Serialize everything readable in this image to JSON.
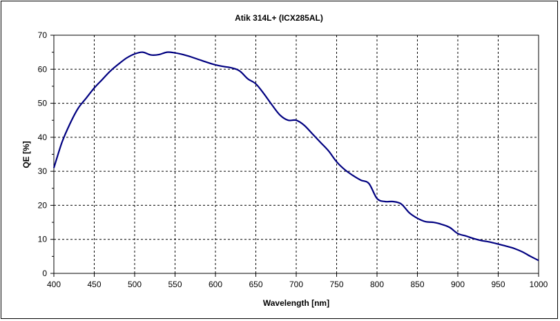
{
  "chart_data": {
    "type": "line",
    "title": "Atik 314L+ (ICX285AL)",
    "xlabel": "Wavelength [nm]",
    "ylabel": "QE [%]",
    "xlim": [
      400,
      1000
    ],
    "ylim": [
      0,
      70
    ],
    "xticks": [
      400,
      450,
      500,
      550,
      600,
      650,
      700,
      750,
      800,
      850,
      900,
      950,
      1000
    ],
    "yticks": [
      0,
      10,
      20,
      30,
      40,
      50,
      60,
      70
    ],
    "grid": true,
    "legend": "none",
    "series": [
      {
        "color": "#000080",
        "x": [
          400,
          410,
          420,
          430,
          440,
          450,
          460,
          470,
          480,
          490,
          500,
          510,
          520,
          530,
          540,
          550,
          560,
          570,
          580,
          590,
          600,
          610,
          620,
          630,
          640,
          650,
          660,
          670,
          680,
          690,
          700,
          710,
          720,
          730,
          740,
          750,
          760,
          770,
          780,
          790,
          800,
          810,
          820,
          830,
          840,
          850,
          860,
          870,
          880,
          890,
          900,
          910,
          920,
          930,
          940,
          950,
          960,
          970,
          980,
          990,
          1000
        ],
        "y": [
          31,
          38.5,
          44,
          48.5,
          51.5,
          54.5,
          57,
          59.5,
          61.5,
          63.3,
          64.5,
          65,
          64.2,
          64.3,
          65,
          64.8,
          64.3,
          63.6,
          62.8,
          62,
          61.3,
          60.8,
          60.4,
          59.5,
          57.2,
          55.7,
          52.8,
          49.5,
          46.5,
          45,
          45,
          43.5,
          41,
          38.5,
          36,
          32.8,
          30.5,
          28.8,
          27.4,
          26.4,
          22,
          21.1,
          21.1,
          20.4,
          17.8,
          16.2,
          15.2,
          15,
          14.4,
          13.5,
          11.7,
          11,
          10.2,
          9.6,
          9.2,
          8.6,
          8,
          7.3,
          6.3,
          5,
          3.8
        ]
      }
    ]
  }
}
